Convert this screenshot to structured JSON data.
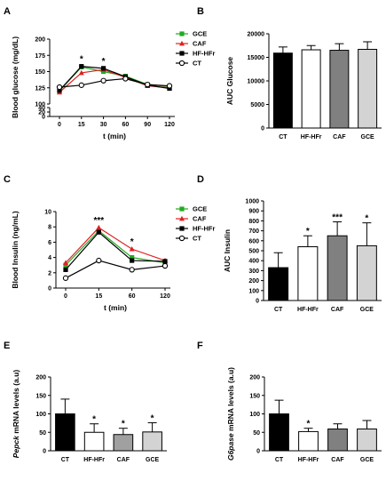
{
  "chart_data": [
    {
      "panel": "A",
      "type": "line",
      "xlabel": "t (min)",
      "ylabel": "Blood glucose (mg/dL)",
      "x": [
        0,
        15,
        30,
        60,
        90,
        120
      ],
      "xticks": [
        "0",
        "15",
        "30",
        "60",
        "90",
        "120"
      ],
      "yticks_lower": [
        "0",
        "20",
        "40"
      ],
      "yticks_upper": [
        "100",
        "125",
        "150",
        "175",
        "200"
      ],
      "ylim_lower": [
        0,
        40
      ],
      "ylim_upper": [
        100,
        200
      ],
      "series": [
        {
          "name": "GCE",
          "color": "#22aa22",
          "marker": "square",
          "values": [
            120,
            157,
            150,
            143,
            130,
            127
          ]
        },
        {
          "name": "CAF",
          "color": "#e02020",
          "marker": "triangle",
          "values": [
            118,
            148,
            153,
            141,
            128,
            125
          ]
        },
        {
          "name": "HF-HFr",
          "color": "#000000",
          "marker": "square",
          "values": [
            121,
            158,
            155,
            142,
            129,
            124
          ]
        },
        {
          "name": "CT",
          "color": "#000000",
          "marker": "circle-open",
          "values": [
            126,
            129,
            136,
            139,
            130,
            128
          ]
        }
      ],
      "annotations": [
        {
          "x": 15,
          "text": "*"
        },
        {
          "x": 30,
          "text": "*"
        }
      ],
      "legend": "right"
    },
    {
      "panel": "B",
      "type": "bar",
      "ylabel": "AUC Glucose",
      "categories": [
        "CT",
        "HF-HFr",
        "CAF",
        "GCE"
      ],
      "values": [
        15900,
        16600,
        16500,
        16700
      ],
      "errors": [
        1300,
        900,
        1400,
        1600
      ],
      "colors": [
        "#000000",
        "#ffffff",
        "#808080",
        "#d3d3d3"
      ],
      "ylim": [
        0,
        20000
      ],
      "yticks": [
        "0",
        "5000",
        "10000",
        "15000",
        "20000"
      ],
      "annotations": [
        "",
        "",
        "",
        ""
      ]
    },
    {
      "panel": "C",
      "type": "line",
      "xlabel": "t (min)",
      "ylabel": "Blood Insulin (ng/mL)",
      "x": [
        0,
        15,
        60,
        120
      ],
      "xticks": [
        "0",
        "15",
        "60",
        "120"
      ],
      "ylim": [
        0,
        10
      ],
      "yticks": [
        "0",
        "2",
        "4",
        "6",
        "8",
        "10"
      ],
      "series": [
        {
          "name": "GCE",
          "color": "#22aa22",
          "marker": "square",
          "values": [
            3.0,
            7.5,
            4.0,
            3.3
          ]
        },
        {
          "name": "CAF",
          "color": "#e02020",
          "marker": "triangle",
          "values": [
            3.3,
            7.9,
            5.1,
            3.6
          ]
        },
        {
          "name": "HF-HFr",
          "color": "#000000",
          "marker": "square",
          "values": [
            2.4,
            7.3,
            3.6,
            3.5
          ]
        },
        {
          "name": "CT",
          "color": "#000000",
          "marker": "circle-open",
          "values": [
            1.3,
            3.6,
            2.4,
            2.9
          ]
        }
      ],
      "annotations": [
        {
          "x": 15,
          "text": "***"
        },
        {
          "x": 60,
          "text": "*"
        }
      ],
      "legend": "right"
    },
    {
      "panel": "D",
      "type": "bar",
      "ylabel": "AUC Insulin",
      "categories": [
        "CT",
        "HF-HFr",
        "CAF",
        "GCE"
      ],
      "values": [
        330,
        540,
        650,
        550
      ],
      "errors": [
        150,
        110,
        140,
        230
      ],
      "colors": [
        "#000000",
        "#ffffff",
        "#808080",
        "#d3d3d3"
      ],
      "ylim": [
        0,
        1000
      ],
      "yticks": [
        "0",
        "100",
        "200",
        "300",
        "400",
        "500",
        "600",
        "700",
        "800",
        "900",
        "1000"
      ],
      "annotations": [
        "",
        "*",
        "***",
        "*"
      ]
    },
    {
      "panel": "E",
      "type": "bar",
      "ylabel_italic": "Pepck",
      "ylabel_rest": " mRNA levels (a.u)",
      "categories": [
        "CT",
        "HF-HFr",
        "CAF",
        "GCE"
      ],
      "values": [
        100,
        50,
        44,
        51
      ],
      "errors": [
        40,
        23,
        17,
        25
      ],
      "colors": [
        "#000000",
        "#ffffff",
        "#a0a0a0",
        "#d3d3d3"
      ],
      "ylim": [
        0,
        200
      ],
      "yticks": [
        "0",
        "50",
        "100",
        "150",
        "200"
      ],
      "annotations": [
        "",
        "*",
        "*",
        "*"
      ]
    },
    {
      "panel": "F",
      "type": "bar",
      "ylabel_italic": "G6pase",
      "ylabel_rest": " mRNA levels (a.u)",
      "categories": [
        "CT",
        "HF-HFr",
        "CAF",
        "GCE"
      ],
      "values": [
        100,
        52,
        59,
        59
      ],
      "errors": [
        37,
        9,
        14,
        23
      ],
      "colors": [
        "#000000",
        "#ffffff",
        "#808080",
        "#d3d3d3"
      ],
      "ylim": [
        0,
        200
      ],
      "yticks": [
        "0",
        "50",
        "100",
        "150",
        "200"
      ],
      "annotations": [
        "",
        "*",
        "",
        ""
      ]
    }
  ]
}
